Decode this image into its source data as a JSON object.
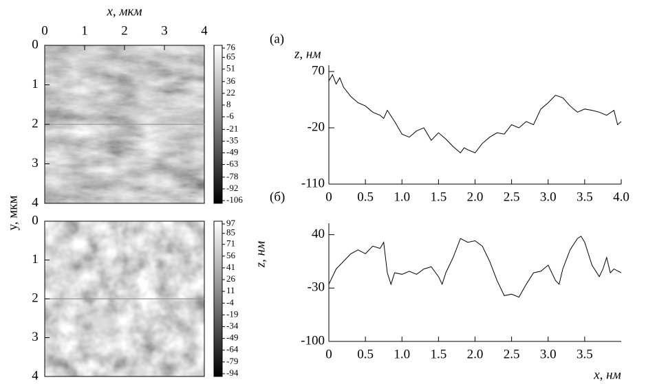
{
  "chart_data": [
    {
      "type": "image",
      "x_label": "x, мкм",
      "y_label": "y, мкм",
      "xlim": [
        0,
        4
      ],
      "xticks": [
        0,
        1,
        2,
        3,
        4
      ],
      "ylim": [
        0,
        4
      ],
      "yticks": [
        0,
        1,
        2,
        3,
        4
      ],
      "colorbar_ticks": [
        76,
        65,
        51,
        36,
        22,
        8,
        -6,
        -21,
        -35,
        -49,
        -63,
        -78,
        -92,
        -106
      ]
    },
    {
      "type": "image",
      "xlim": [
        0,
        4
      ],
      "ylim": [
        0,
        4
      ],
      "yticks": [
        0,
        1,
        2,
        3,
        4
      ],
      "colorbar_ticks": [
        97,
        85,
        71,
        56,
        41,
        26,
        11,
        -4,
        -19,
        -34,
        -49,
        -64,
        -79,
        -94
      ]
    },
    {
      "type": "line",
      "panel_label": "(а)",
      "y_label": "z, нм",
      "color": "#000",
      "xlim": [
        0,
        4
      ],
      "ylim": [
        -110,
        80
      ],
      "xticks": [
        0,
        0.5,
        {
          "value": 1,
          "label": "1.0"
        },
        1.5,
        {
          "value": 2,
          "label": "2.0"
        },
        2.5,
        {
          "value": 3,
          "label": "3.0"
        },
        3.5,
        {
          "value": 4,
          "label": "4.0"
        }
      ],
      "yticks": [
        70,
        -20,
        -110
      ],
      "x": [
        0,
        0.05,
        0.1,
        0.15,
        0.2,
        0.3,
        0.4,
        0.5,
        0.6,
        0.7,
        0.75,
        0.8,
        0.9,
        1.0,
        1.1,
        1.2,
        1.3,
        1.4,
        1.5,
        1.6,
        1.7,
        1.8,
        1.85,
        1.9,
        2.0,
        2.1,
        2.2,
        2.3,
        2.4,
        2.5,
        2.6,
        2.7,
        2.8,
        2.9,
        3.0,
        3.1,
        3.2,
        3.3,
        3.4,
        3.5,
        3.6,
        3.7,
        3.8,
        3.9,
        3.95,
        4.0
      ],
      "values": [
        55,
        65,
        50,
        60,
        45,
        30,
        20,
        15,
        5,
        0,
        -5,
        8,
        -10,
        -30,
        -35,
        -25,
        -20,
        -40,
        -28,
        -38,
        -50,
        -60,
        -52,
        -55,
        -60,
        -45,
        -35,
        -28,
        -30,
        -15,
        -20,
        -10,
        -15,
        10,
        20,
        32,
        28,
        15,
        5,
        10,
        8,
        5,
        0,
        8,
        -15,
        -10
      ]
    },
    {
      "type": "line",
      "panel_label": "(б)",
      "y_label": "z, нм",
      "x_label": "x, нм",
      "color": "#000",
      "xlim": [
        0,
        4
      ],
      "ylim": [
        -100,
        55
      ],
      "xticks": [
        0,
        0.5,
        {
          "value": 1,
          "label": "1.0"
        },
        1.5,
        {
          "value": 2,
          "label": "2.0"
        },
        2.5,
        {
          "value": 3,
          "label": "3.0"
        },
        3.5
      ],
      "yticks": [
        40,
        -30,
        -100
      ],
      "x": [
        0,
        0.1,
        0.2,
        0.3,
        0.4,
        0.5,
        0.6,
        0.7,
        0.75,
        0.8,
        0.85,
        0.9,
        1.0,
        1.1,
        1.2,
        1.3,
        1.4,
        1.5,
        1.55,
        1.6,
        1.7,
        1.8,
        1.9,
        2.0,
        2.1,
        2.2,
        2.3,
        2.4,
        2.5,
        2.6,
        2.7,
        2.8,
        2.9,
        3.0,
        3.1,
        3.15,
        3.2,
        3.3,
        3.4,
        3.45,
        3.5,
        3.6,
        3.7,
        3.75,
        3.8,
        3.85,
        3.9,
        4.0
      ],
      "values": [
        -25,
        -5,
        5,
        15,
        20,
        15,
        25,
        22,
        30,
        -10,
        -25,
        -10,
        -12,
        -8,
        -12,
        -5,
        -2,
        -15,
        -25,
        -10,
        10,
        35,
        30,
        32,
        25,
        5,
        -20,
        -40,
        -38,
        -42,
        -25,
        -10,
        -8,
        0,
        -20,
        -25,
        -5,
        20,
        35,
        38,
        30,
        0,
        -15,
        -5,
        10,
        -10,
        -5,
        -10
      ]
    }
  ]
}
